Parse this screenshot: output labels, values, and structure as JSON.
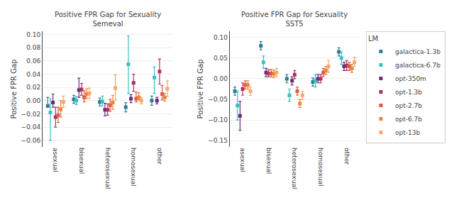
{
  "chart_data": [
    {
      "type": "scatter",
      "title": "Positive FPR Gap for Sexuality\nSemeval",
      "ylabel": "Positive FPR Gap",
      "categories": [
        "asexual",
        "bisexual",
        "heterosexual",
        "homosexual",
        "other"
      ],
      "series": [
        {
          "name": "galactica-1.3b",
          "color": "#2e7d96",
          "marker": "square",
          "values": [
            -0.008,
            0.002,
            -0.002,
            -0.01,
            0.0
          ],
          "lo": [
            -0.01,
            -0.004,
            -0.008,
            -0.017,
            -0.007
          ],
          "hi": [
            0.005,
            0.008,
            0.004,
            -0.003,
            0.007
          ]
        },
        {
          "name": "galactica-6.7b",
          "color": "#3bbfbf",
          "marker": "square",
          "values": [
            -0.018,
            0.0,
            -0.001,
            0.055,
            0.035
          ],
          "lo": [
            -0.06,
            -0.006,
            -0.008,
            0.011,
            0.011
          ],
          "hi": [
            0.003,
            0.006,
            0.007,
            0.098,
            0.051
          ]
        },
        {
          "name": "opt-350m",
          "color": "#6a2c7a",
          "marker": "square",
          "values": [
            -0.003,
            0.016,
            -0.014,
            0.003,
            0.0
          ],
          "lo": [
            -0.01,
            0.005,
            -0.023,
            -0.003,
            -0.005
          ],
          "hi": [
            0.01,
            0.034,
            -0.004,
            0.009,
            0.005
          ]
        },
        {
          "name": "opt-1.3b",
          "color": "#b03060",
          "marker": "square",
          "values": [
            -0.025,
            0.017,
            -0.014,
            0.027,
            0.044
          ],
          "lo": [
            -0.04,
            0.008,
            -0.022,
            0.014,
            0.025
          ],
          "hi": [
            -0.01,
            0.026,
            -0.005,
            0.04,
            0.063
          ]
        },
        {
          "name": "opt-2.7b",
          "color": "#e05a40",
          "marker": "square",
          "values": [
            -0.022,
            0.005,
            -0.007,
            0.003,
            0.01
          ],
          "lo": [
            -0.033,
            -0.002,
            -0.016,
            -0.002,
            0.001
          ],
          "hi": [
            -0.01,
            0.015,
            0.002,
            0.013,
            0.023
          ]
        },
        {
          "name": "opt-6.7b",
          "color": "#e8853a",
          "marker": "square",
          "values": [
            -0.013,
            0.01,
            -0.003,
            0.005,
            0.005
          ],
          "lo": [
            -0.025,
            0.003,
            -0.013,
            0.001,
            -0.001
          ],
          "hi": [
            0.0,
            0.018,
            0.008,
            0.012,
            0.011
          ]
        },
        {
          "name": "opt-13b",
          "color": "#f5a86a",
          "marker": "square",
          "values": [
            -0.002,
            0.011,
            0.019,
            0.0,
            0.018
          ],
          "lo": [
            -0.01,
            0.003,
            0.001,
            -0.005,
            0.006
          ],
          "hi": [
            0.007,
            0.019,
            0.039,
            0.005,
            0.03
          ]
        }
      ],
      "ylim": [
        -0.07,
        0.105
      ],
      "yticks": [
        {
          "value": -0.06,
          "label": "−0.06"
        },
        {
          "value": -0.04,
          "label": "−0.04"
        },
        {
          "value": -0.02,
          "label": "−0.02"
        },
        {
          "value": 0.0,
          "label": "0.00"
        },
        {
          "value": 0.02,
          "label": "0.02"
        },
        {
          "value": 0.04,
          "label": "0.04"
        },
        {
          "value": 0.06,
          "label": "0.06"
        },
        {
          "value": 0.08,
          "label": "0.08"
        },
        {
          "value": 0.1,
          "label": "0.10"
        }
      ],
      "grid": true
    },
    {
      "type": "scatter",
      "title": "Positive FPR Gap for Sexuality\nSST5",
      "ylabel": "Positive FPR Gap",
      "categories": [
        "asexual",
        "bisexual",
        "heterosexual",
        "homosexual",
        "other"
      ],
      "series": [
        {
          "name": "galactica-1.3b",
          "color": "#2e7d96",
          "marker": "square",
          "values": [
            -0.03,
            0.08,
            0.0,
            -0.008,
            0.065
          ],
          "lo": [
            -0.04,
            0.07,
            -0.01,
            -0.018,
            0.055
          ],
          "hi": [
            -0.02,
            0.09,
            0.01,
            0.002,
            0.075
          ]
        },
        {
          "name": "galactica-6.7b",
          "color": "#3bbfbf",
          "marker": "square",
          "values": [
            -0.065,
            0.04,
            -0.04,
            -0.005,
            0.05
          ],
          "lo": [
            -0.1,
            0.025,
            -0.055,
            -0.02,
            0.035
          ],
          "hi": [
            -0.03,
            0.055,
            -0.025,
            0.01,
            0.065
          ]
        },
        {
          "name": "opt-350m",
          "color": "#6a2c7a",
          "marker": "square",
          "values": [
            -0.09,
            0.015,
            -0.005,
            0.0,
            0.03
          ],
          "lo": [
            -0.125,
            0.005,
            -0.015,
            -0.01,
            0.02
          ],
          "hi": [
            -0.055,
            0.025,
            0.005,
            0.01,
            0.04
          ]
        },
        {
          "name": "opt-1.3b",
          "color": "#b03060",
          "marker": "square",
          "values": [
            -0.025,
            0.013,
            0.01,
            0.0,
            0.032
          ],
          "lo": [
            -0.04,
            0.005,
            0.0,
            -0.01,
            0.02
          ],
          "hi": [
            -0.01,
            0.022,
            0.02,
            0.01,
            0.044
          ]
        },
        {
          "name": "opt-2.7b",
          "color": "#e05a40",
          "marker": "square",
          "values": [
            -0.015,
            0.013,
            -0.03,
            0.015,
            0.03
          ],
          "lo": [
            -0.025,
            0.005,
            -0.04,
            0.005,
            0.02
          ],
          "hi": [
            -0.005,
            0.022,
            -0.02,
            0.025,
            0.04
          ]
        },
        {
          "name": "opt-6.7b",
          "color": "#e8853a",
          "marker": "square",
          "values": [
            -0.015,
            0.012,
            -0.06,
            0.02,
            0.025
          ],
          "lo": [
            -0.025,
            0.003,
            -0.07,
            0.01,
            0.015
          ],
          "hi": [
            -0.005,
            0.021,
            -0.05,
            0.03,
            0.035
          ]
        },
        {
          "name": "opt-13b",
          "color": "#f5a86a",
          "marker": "square",
          "values": [
            -0.03,
            0.015,
            -0.04,
            0.03,
            0.04
          ],
          "lo": [
            -0.04,
            0.005,
            -0.05,
            0.015,
            0.03
          ],
          "hi": [
            -0.02,
            0.025,
            -0.03,
            0.045,
            0.052
          ]
        }
      ],
      "ylim": [
        -0.165,
        0.115
      ],
      "yticks": [
        {
          "value": -0.15,
          "label": "−0.15"
        },
        {
          "value": -0.1,
          "label": "−0.10"
        },
        {
          "value": -0.05,
          "label": "−0.05"
        },
        {
          "value": 0.0,
          "label": "0.00"
        },
        {
          "value": 0.05,
          "label": "0.05"
        },
        {
          "value": 0.1,
          "label": "0.10"
        }
      ],
      "grid": true,
      "legend": "upper right",
      "legend_title": "LM"
    }
  ]
}
